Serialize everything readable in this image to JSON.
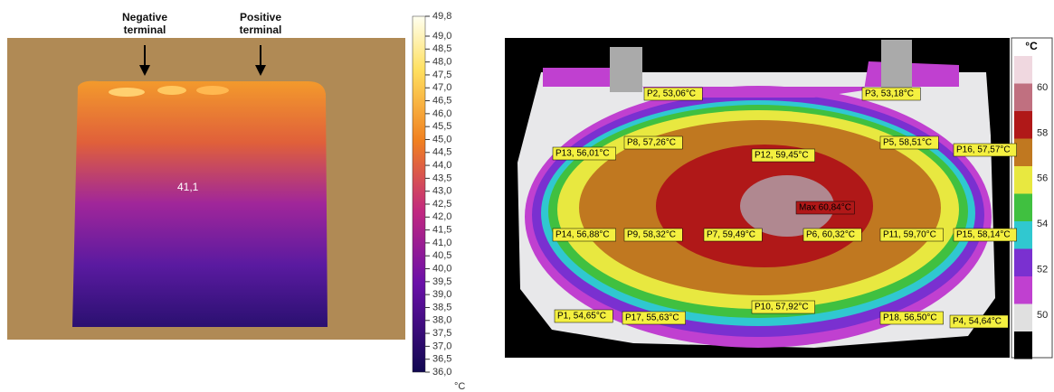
{
  "left_image": {
    "annotations": [
      "Negative terminal",
      "Positive terminal"
    ],
    "spot_reading": "41,1",
    "colorbar": {
      "labels": [
        "49,8",
        "49,0",
        "48,5",
        "48,0",
        "47,5",
        "47,0",
        "46,5",
        "46,0",
        "45,5",
        "45,0",
        "44,5",
        "44,0",
        "43,5",
        "43,0",
        "42,5",
        "42,0",
        "41,5",
        "41,0",
        "40,5",
        "40,0",
        "39,5",
        "39,0",
        "38,5",
        "38,0",
        "37,5",
        "37,0",
        "36,5",
        "36,0"
      ],
      "unit": "°C"
    }
  },
  "right_image": {
    "points": [
      "P2, 53,06°C",
      "P3, 53,18°C",
      "P13, 56,01°C",
      "P8, 57,26°C",
      "P12, 59,45°C",
      "P5, 58,51°C",
      "P16, 57,57°C",
      "Max 60,84°C",
      "P14, 56,88°C",
      "P9, 58,32°C",
      "P7, 59,49°C",
      "P6, 60,32°C",
      "P11, 59,70°C",
      "P15, 58,14°C",
      "P1, 54,65°C",
      "P17, 55,63°C",
      "P10, 57,92°C",
      "P18, 56,50°C",
      "P4, 54,64°C"
    ],
    "colorbar": {
      "unit": "°C",
      "labels": [
        "60",
        "58",
        "56",
        "54",
        "52",
        "50"
      ]
    }
  }
}
